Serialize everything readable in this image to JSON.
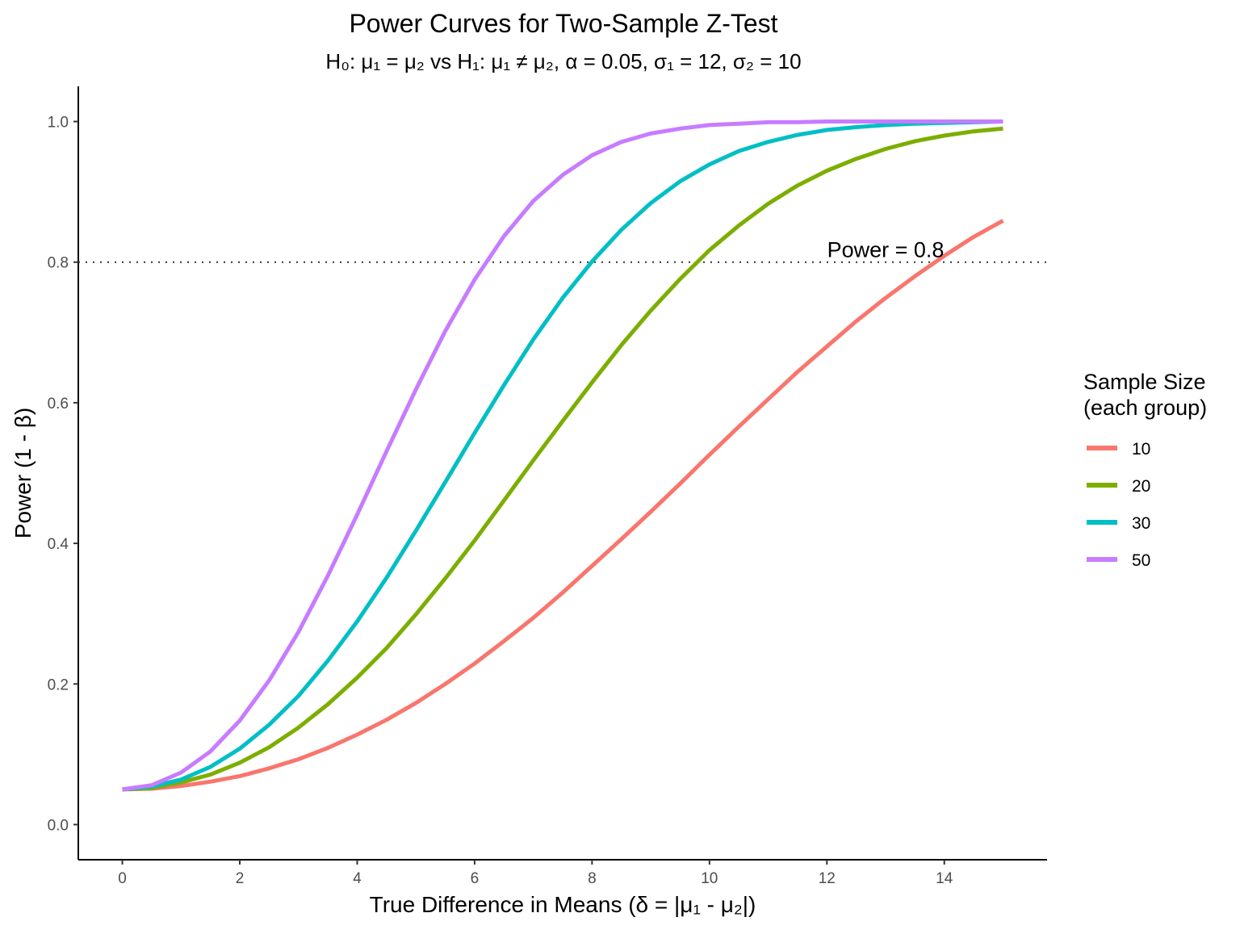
{
  "chart_data": {
    "type": "line",
    "title": "Power Curves for Two-Sample Z-Test",
    "subtitle": "H₀: μ₁ = μ₂ vs H₁: μ₁ ≠ μ₂, α = 0.05, σ₁ = 12, σ₂ = 10",
    "xlabel": "True Difference in Means (δ = |μ₁ - μ₂|)",
    "ylabel": "Power (1 - β)",
    "xlim": [
      -0.75,
      15.75
    ],
    "ylim": [
      -0.05,
      1.05
    ],
    "x_ticks": [
      0,
      2,
      4,
      6,
      8,
      10,
      12,
      14
    ],
    "x_tick_labels": [
      "0",
      "2",
      "4",
      "6",
      "8",
      "10",
      "12",
      "14"
    ],
    "y_ticks": [
      0,
      0.2,
      0.4,
      0.6,
      0.8,
      1.0
    ],
    "y_tick_labels": [
      "0.0",
      "0.2",
      "0.4",
      "0.6",
      "0.8",
      "1.0"
    ],
    "grid": false,
    "reference_line": {
      "y": 0.8,
      "style": "dotted",
      "label": "Power = 0.8",
      "label_x": 13
    },
    "legend": {
      "title_line1": "Sample Size",
      "title_line2": "(each group)",
      "placement": "right"
    },
    "x": [
      0,
      0.5,
      1,
      1.5,
      2,
      2.5,
      3,
      3.5,
      4,
      4.5,
      5,
      5.5,
      6,
      6.5,
      7,
      7.5,
      8,
      8.5,
      9,
      9.5,
      10,
      10.5,
      11,
      11.5,
      12,
      12.5,
      13,
      13.5,
      14,
      14.5,
      15
    ],
    "series": [
      {
        "name": "10",
        "color": "#F8766D",
        "values": [
          0.05,
          0.051,
          0.055,
          0.061,
          0.069,
          0.08,
          0.093,
          0.109,
          0.128,
          0.149,
          0.173,
          0.2,
          0.229,
          0.261,
          0.294,
          0.33,
          0.368,
          0.406,
          0.445,
          0.485,
          0.526,
          0.566,
          0.605,
          0.644,
          0.68,
          0.716,
          0.749,
          0.78,
          0.809,
          0.836,
          0.859
        ]
      },
      {
        "name": "20",
        "color": "#7CAE00",
        "values": [
          0.05,
          0.052,
          0.06,
          0.071,
          0.088,
          0.11,
          0.138,
          0.171,
          0.209,
          0.251,
          0.299,
          0.35,
          0.404,
          0.461,
          0.518,
          0.574,
          0.629,
          0.682,
          0.731,
          0.776,
          0.817,
          0.852,
          0.883,
          0.909,
          0.93,
          0.947,
          0.961,
          0.972,
          0.98,
          0.986,
          0.99
        ]
      },
      {
        "name": "30",
        "color": "#00BFC4",
        "values": [
          0.05,
          0.054,
          0.064,
          0.082,
          0.108,
          0.142,
          0.183,
          0.233,
          0.289,
          0.351,
          0.418,
          0.487,
          0.557,
          0.625,
          0.69,
          0.749,
          0.801,
          0.846,
          0.884,
          0.915,
          0.939,
          0.958,
          0.971,
          0.981,
          0.988,
          0.992,
          0.995,
          0.997,
          0.998,
          0.999,
          1.0
        ]
      },
      {
        "name": "50",
        "color": "#C77CFF",
        "values": [
          0.05,
          0.056,
          0.074,
          0.104,
          0.148,
          0.205,
          0.274,
          0.354,
          0.441,
          0.531,
          0.619,
          0.702,
          0.775,
          0.837,
          0.887,
          0.924,
          0.952,
          0.971,
          0.983,
          0.99,
          0.995,
          0.997,
          0.999,
          0.999,
          1.0,
          1.0,
          1.0,
          1.0,
          1.0,
          1.0,
          1.0
        ]
      }
    ]
  }
}
